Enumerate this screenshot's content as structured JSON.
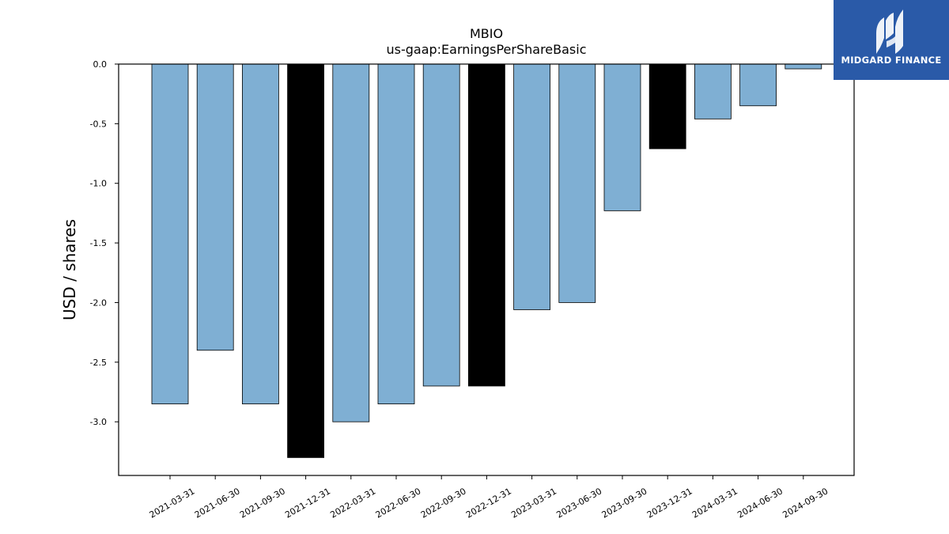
{
  "chart_data": {
    "type": "bar",
    "title": "MBIO",
    "subtitle": "us-gaap:EarningsPerShareBasic",
    "xlabel": "",
    "ylabel": "USD / shares",
    "ylim": [
      -3.45,
      0.0
    ],
    "yticks": [
      "0.0",
      "-0.5",
      "-1.0",
      "-1.5",
      "-2.0",
      "-2.5",
      "-3.0"
    ],
    "ytick_values": [
      0.0,
      -0.5,
      -1.0,
      -1.5,
      -2.0,
      -2.5,
      -3.0
    ],
    "grid": false,
    "categories": [
      "2021-03-31",
      "2021-06-30",
      "2021-09-30",
      "2021-12-31",
      "2022-03-31",
      "2022-06-30",
      "2022-09-30",
      "2022-12-31",
      "2023-03-31",
      "2023-06-30",
      "2023-09-30",
      "2023-12-31",
      "2024-03-31",
      "2024-06-30",
      "2024-09-30"
    ],
    "values": [
      -2.85,
      -2.4,
      -2.85,
      -3.3,
      -3.0,
      -2.85,
      -2.7,
      -2.7,
      -2.06,
      -2.0,
      -1.23,
      -0.71,
      -0.46,
      -0.35,
      -0.04
    ],
    "bar_colors": [
      "#7fafd3",
      "#7fafd3",
      "#7fafd3",
      "#000000",
      "#7fafd3",
      "#7fafd3",
      "#7fafd3",
      "#000000",
      "#7fafd3",
      "#7fafd3",
      "#7fafd3",
      "#000000",
      "#7fafd3",
      "#7fafd3",
      "#7fafd3"
    ]
  },
  "logo": {
    "text": "MIDGARD FINANCE",
    "background_color": "#2a5aa8"
  }
}
